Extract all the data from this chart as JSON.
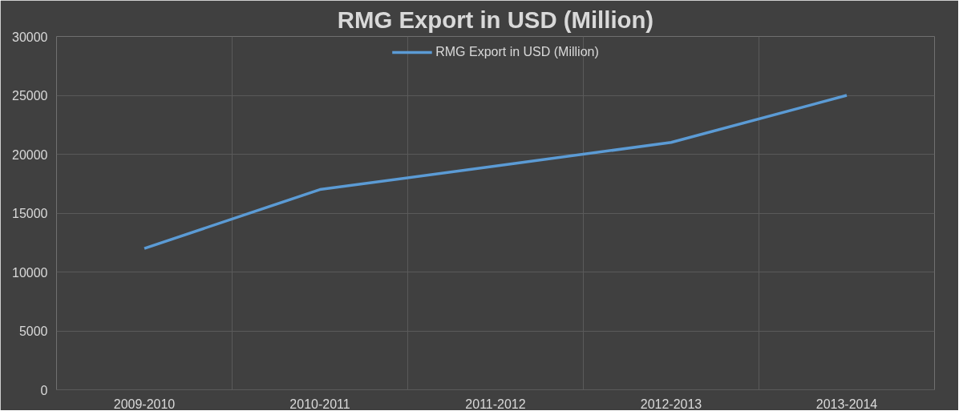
{
  "chart_data": {
    "type": "line",
    "title": "RMG Export in USD (Million)",
    "categories": [
      "2009-2010",
      "2010-2011",
      "2011-2012",
      "2012-2013",
      "2013-2014"
    ],
    "series": [
      {
        "name": "RMG Export in USD (Million)",
        "color": "#5b9bd5",
        "values": [
          12000,
          17000,
          19000,
          21000,
          25000
        ]
      }
    ],
    "ylim": [
      0,
      30000
    ],
    "yticks": [
      0,
      5000,
      10000,
      15000,
      20000,
      25000,
      30000
    ],
    "grid": true,
    "legend": "top",
    "marker": "none",
    "line_style": "solid"
  }
}
